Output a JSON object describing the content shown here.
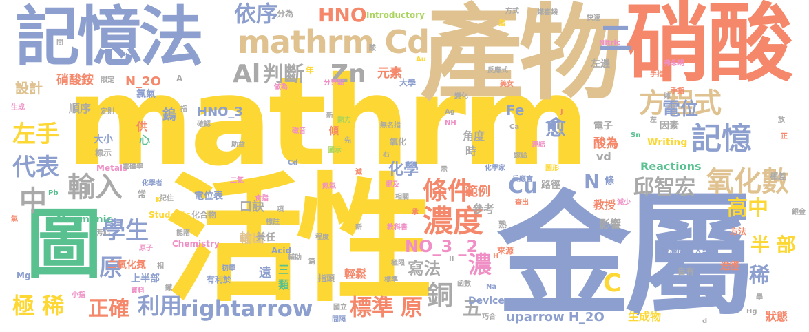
{
  "colors": {
    "yellow": "#fdd835",
    "blue": "#8d9fce",
    "orange": "#f5876a",
    "tan": "#dfc290",
    "green": "#59c08f",
    "gray": "#a9a9a9",
    "pink": "#ef8fc5",
    "lime": "#a8d45a"
  },
  "words": [
    {
      "text": "mathrm",
      "color": "yellow"
    },
    {
      "text": "活性",
      "color": "yellow"
    },
    {
      "text": "金屬",
      "color": "blue"
    },
    {
      "text": "產物",
      "color": "tan"
    },
    {
      "text": "硝酸",
      "color": "orange"
    },
    {
      "text": "記憶法",
      "color": "blue"
    },
    {
      "text": "圖",
      "color": "green"
    },
    {
      "text": "mathrm Cd",
      "color": "tan"
    },
    {
      "text": "依序",
      "color": "blue"
    },
    {
      "text": "HNO",
      "color": "orange"
    },
    {
      "text": "二",
      "color": "blue"
    },
    {
      "text": "Al",
      "color": "gray"
    },
    {
      "text": "判斷",
      "color": "gray"
    },
    {
      "text": "Zn",
      "color": "gray"
    },
    {
      "text": "方程式",
      "color": "tan"
    },
    {
      "text": "電位",
      "color": "blue"
    },
    {
      "text": "記憶",
      "color": "blue"
    },
    {
      "text": "左手",
      "color": "yellow"
    },
    {
      "text": "代表",
      "color": "blue"
    },
    {
      "text": "輸入",
      "color": "gray"
    },
    {
      "text": "中",
      "color": "gray"
    },
    {
      "text": "學生",
      "color": "blue"
    },
    {
      "text": "條件",
      "color": "orange"
    },
    {
      "text": "濃度",
      "color": "orange"
    },
    {
      "text": "Cu",
      "color": "blue"
    },
    {
      "text": "N",
      "color": "blue"
    },
    {
      "text": "氧化數",
      "color": "tan"
    },
    {
      "text": "邱智宏",
      "color": "gray"
    },
    {
      "text": "高中",
      "color": "yellow"
    },
    {
      "text": "半 部",
      "color": "yellow"
    },
    {
      "text": "稀",
      "color": "blue"
    },
    {
      "text": "NO_3 _2",
      "color": "pink"
    },
    {
      "text": "寫法",
      "color": "gray"
    },
    {
      "text": "濃",
      "color": "pink"
    },
    {
      "text": "C",
      "color": "yellow"
    },
    {
      "text": "原",
      "color": "blue"
    },
    {
      "text": "極 稀",
      "color": "yellow"
    },
    {
      "text": "正確",
      "color": "orange"
    },
    {
      "text": "利用",
      "color": "blue"
    },
    {
      "text": "rightarrow",
      "color": "blue"
    },
    {
      "text": "標準",
      "color": "orange"
    },
    {
      "text": "原",
      "color": "orange"
    },
    {
      "text": "銅",
      "color": "gray"
    },
    {
      "text": "五",
      "color": "gray"
    },
    {
      "text": "uparrow H_2O",
      "color": "blue"
    },
    {
      "text": "設計",
      "color": "tan"
    },
    {
      "text": "愈",
      "color": "blue"
    },
    {
      "text": "化學",
      "color": "blue"
    },
    {
      "text": "範例",
      "color": "orange"
    },
    {
      "text": "口訣",
      "color": "gray"
    },
    {
      "text": "輸出",
      "color": "tan"
    },
    {
      "text": "兼任",
      "color": "gray"
    },
    {
      "text": "硝酸銨",
      "color": "orange"
    },
    {
      "text": "N_2O",
      "color": "orange"
    },
    {
      "text": "順序",
      "color": "gray"
    },
    {
      "text": "鎢",
      "color": "blue"
    },
    {
      "text": "HNO_3",
      "color": "blue"
    },
    {
      "text": "分為",
      "color": "gray"
    },
    {
      "text": "Introductory",
      "color": "lime"
    },
    {
      "text": "元素",
      "color": "orange"
    },
    {
      "text": "大學",
      "color": "blue"
    },
    {
      "text": "Reactions",
      "color": "green"
    },
    {
      "text": "Writing",
      "color": "yellow"
    },
    {
      "text": "Fe",
      "color": "blue"
    },
    {
      "text": "電子",
      "color": "gray"
    },
    {
      "text": "酸為",
      "color": "orange"
    },
    {
      "text": "因素",
      "color": "gray"
    },
    {
      "text": "角度",
      "color": "gray"
    },
    {
      "text": "時",
      "color": "gray"
    },
    {
      "text": "vd",
      "color": "gray"
    },
    {
      "text": "電位表",
      "color": "blue"
    },
    {
      "text": "教授",
      "color": "orange"
    },
    {
      "text": "影響",
      "color": "gray"
    },
    {
      "text": "參考",
      "color": "gray"
    },
    {
      "text": "臺灣師範大學",
      "color": "blue"
    },
    {
      "text": "自有",
      "color": "gray"
    },
    {
      "text": "途徑",
      "color": "orange"
    },
    {
      "text": "生成物",
      "color": "yellow"
    },
    {
      "text": "狀態",
      "color": "orange"
    },
    {
      "text": "Device",
      "color": "blue"
    },
    {
      "text": "輕鬆",
      "color": "orange"
    },
    {
      "text": "遠",
      "color": "blue"
    },
    {
      "text": "三",
      "color": "green"
    },
    {
      "text": "類",
      "color": "green"
    },
    {
      "text": "Mnemonic",
      "color": "green"
    },
    {
      "text": "氯氣",
      "color": "blue"
    },
    {
      "text": "大小",
      "color": "blue"
    },
    {
      "text": "標示",
      "color": "gray"
    },
    {
      "text": "供",
      "color": "orange"
    },
    {
      "text": "心",
      "color": "green"
    },
    {
      "text": "上半部",
      "color": "blue"
    },
    {
      "text": "二氧化氮",
      "color": "orange"
    },
    {
      "text": "方式",
      "color": "gray"
    },
    {
      "text": "鐵喜錢",
      "color": "gray"
    },
    {
      "text": "快速",
      "color": "gray"
    },
    {
      "text": "Nitric",
      "color": "pink"
    },
    {
      "text": "手指頭",
      "color": "orange"
    },
    {
      "text": "弗朱明",
      "color": "pink"
    },
    {
      "text": "手指",
      "color": "orange"
    },
    {
      "text": "嫁",
      "color": "gray"
    },
    {
      "text": "Metals",
      "color": "pink"
    },
    {
      "text": "Chemistry",
      "color": "pink"
    },
    {
      "text": "Acid",
      "color": "blue"
    },
    {
      "text": "銀金",
      "color": "gray"
    },
    {
      "text": "相差",
      "color": "gray"
    },
    {
      "text": "方法",
      "color": "orange"
    },
    {
      "text": "來源",
      "color": "orange"
    },
    {
      "text": "Students",
      "color": "yellow"
    },
    {
      "text": "化合物",
      "color": "gray"
    },
    {
      "text": "Pb",
      "color": "green"
    },
    {
      "text": "Mg",
      "color": "blue"
    },
    {
      "text": "有利於",
      "color": "blue"
    },
    {
      "text": "初學",
      "color": "blue"
    },
    {
      "text": "指頭",
      "color": "gray"
    },
    {
      "text": "標準",
      "color": "gray"
    },
    {
      "text": "函數",
      "color": "gray"
    },
    {
      "text": "Na",
      "color": "blue"
    },
    {
      "text": "巧合",
      "color": "gray"
    },
    {
      "text": "Hg",
      "color": "gray"
    },
    {
      "text": "學",
      "color": "gray"
    },
    {
      "text": "間隔",
      "color": "blue"
    },
    {
      "text": "國立",
      "color": "gray"
    },
    {
      "text": "分界點",
      "color": "pink"
    },
    {
      "text": "美女",
      "color": "orange"
    },
    {
      "text": "確認",
      "color": "gray"
    },
    {
      "text": "助益",
      "color": "gray"
    },
    {
      "text": "做為",
      "color": "pink"
    },
    {
      "text": "變化",
      "color": "gray"
    },
    {
      "text": "熱力",
      "color": "lime"
    },
    {
      "text": "無名指",
      "color": "gray"
    },
    {
      "text": "氧化",
      "color": "gray"
    },
    {
      "text": "化學家",
      "color": "blue"
    },
    {
      "text": "反應會",
      "color": "blue"
    },
    {
      "text": "電磁學",
      "color": "gray"
    },
    {
      "text": "化學者",
      "color": "blue"
    },
    {
      "text": "Ag",
      "color": "gray"
    },
    {
      "text": "NH",
      "color": "pink"
    },
    {
      "text": "Ca",
      "color": "gray"
    },
    {
      "text": "Sn",
      "color": "green"
    },
    {
      "text": "連結",
      "color": "pink"
    },
    {
      "text": "圖形",
      "color": "yellow"
    },
    {
      "text": "嫁給",
      "color": "gray"
    },
    {
      "text": "路徑",
      "color": "gray"
    },
    {
      "text": "條",
      "color": "blue"
    },
    {
      "text": "減少",
      "color": "pink"
    },
    {
      "text": "查出",
      "color": "orange"
    },
    {
      "text": "相關",
      "color": "gray"
    },
    {
      "text": "提及",
      "color": "pink"
    },
    {
      "text": "承",
      "color": "orange"
    },
    {
      "text": "熟",
      "color": "gray"
    },
    {
      "text": "極限",
      "color": "gray"
    },
    {
      "text": "教科書",
      "color": "pink"
    },
    {
      "text": "新",
      "color": "gray"
    },
    {
      "text": "程度",
      "color": "gray"
    },
    {
      "text": "篇",
      "color": "gray"
    },
    {
      "text": "輔助",
      "color": "gray"
    },
    {
      "text": "資料",
      "color": "pink"
    },
    {
      "text": "小指",
      "color": "pink"
    },
    {
      "text": "能階",
      "color": "gray"
    },
    {
      "text": "原子",
      "color": "pink"
    },
    {
      "text": "芳心",
      "color": "gray"
    },
    {
      "text": "記住",
      "color": "gray"
    },
    {
      "text": "常",
      "color": "gray"
    },
    {
      "text": "食指",
      "color": "pink"
    },
    {
      "text": "項",
      "color": "gray"
    },
    {
      "text": "二氮",
      "color": "pink"
    },
    {
      "text": "氮氣",
      "color": "pink"
    },
    {
      "text": "標註",
      "color": "gray"
    },
    {
      "text": "鐵",
      "color": "gray"
    },
    {
      "text": "相",
      "color": "gray"
    },
    {
      "text": "K",
      "color": "yellow"
    },
    {
      "text": "Cd",
      "color": "blue"
    },
    {
      "text": "磁音",
      "color": "pink"
    },
    {
      "text": "圖示",
      "color": "lime"
    },
    {
      "text": "先",
      "color": "gray"
    },
    {
      "text": "傾",
      "color": "orange"
    },
    {
      "text": "新",
      "color": "gray"
    },
    {
      "text": "指",
      "color": "gray"
    },
    {
      "text": "定則",
      "color": "gray"
    },
    {
      "text": "限定",
      "color": "gray"
    },
    {
      "text": "生成",
      "color": "pink"
    },
    {
      "text": "氣",
      "color": "orange"
    },
    {
      "text": "間",
      "color": "gray"
    },
    {
      "text": "年",
      "color": "yellow"
    },
    {
      "text": "A",
      "color": "gray"
    },
    {
      "text": "酸",
      "color": "gray"
    },
    {
      "text": "Au",
      "color": "yellow"
    },
    {
      "text": "反應式",
      "color": "gray"
    },
    {
      "text": "指",
      "color": "yellow"
    },
    {
      "text": "J",
      "color": "orange"
    },
    {
      "text": "左",
      "color": "gray"
    },
    {
      "text": "放",
      "color": "gray"
    },
    {
      "text": "正",
      "color": "orange"
    },
    {
      "text": "右",
      "color": "gray"
    },
    {
      "text": "減",
      "color": "orange"
    },
    {
      "text": "示",
      "color": "gray"
    },
    {
      "text": "H",
      "color": "orange"
    },
    {
      "text": "II",
      "color": "gray"
    },
    {
      "text": "d",
      "color": "gray"
    },
    {
      "text": "左邊",
      "color": "gray"
    }
  ]
}
